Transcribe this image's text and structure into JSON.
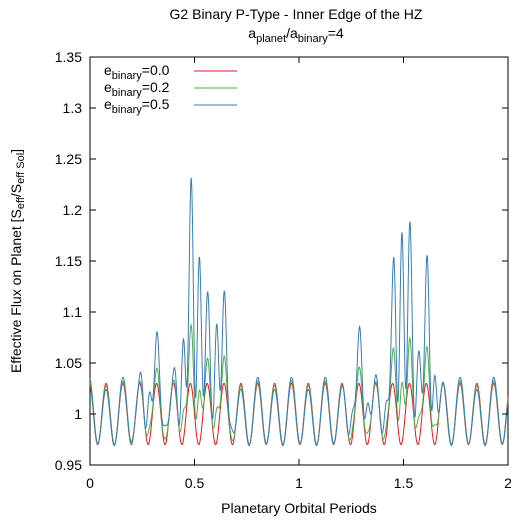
{
  "chart_data": {
    "type": "line",
    "title_line1": "G2 Binary P-Type - Inner Edge of the HZ",
    "title_line2": {
      "a1": "a",
      "s1": "planet",
      "mid": "/a",
      "s2": "binary",
      "tail": "=4"
    },
    "xlabel": "Planetary Orbital Periods",
    "ylabel": {
      "p1": "Effective Flux on Planet [S",
      "s1": "eff",
      "p2": "/S",
      "s2": "eff Sol",
      "p3": "]"
    },
    "xlim": [
      0,
      2
    ],
    "ylim": [
      0.95,
      1.35
    ],
    "x_ticks": [
      "0",
      "0.5",
      "1",
      "1.5",
      "2"
    ],
    "y_ticks": [
      "0.95",
      "1",
      "1.05",
      "1.1",
      "1.15",
      "1.2",
      "1.25",
      "1.3",
      "1.35"
    ],
    "grid": false,
    "legend_position": "top-left",
    "series": [
      {
        "name_main": "e",
        "name_sub": "binary",
        "name_tail": "=0.0",
        "ecc": 0.0,
        "color": "#e41a1c"
      },
      {
        "name_main": "e",
        "name_sub": "binary",
        "name_tail": "=0.2",
        "ecc": 0.2,
        "color": "#4daf4a"
      },
      {
        "name_main": "e",
        "name_sub": "binary",
        "name_tail": "=0.5",
        "ecc": 0.5,
        "color": "#377eb8"
      }
    ],
    "curve_model": {
      "x_step": 0.002,
      "base_osc": {
        "mean": 1.0,
        "amplitude": 0.03,
        "cycles_per_period": 12.4
      },
      "eccentric_bursts": [
        {
          "center": 0.5,
          "scale": [
            0.23,
            0.12
          ]
        },
        {
          "center": 1.5,
          "scale": [
            0.23,
            0.12
          ]
        }
      ],
      "peak_y": [
        1.06,
        1.12,
        1.27
      ]
    }
  }
}
